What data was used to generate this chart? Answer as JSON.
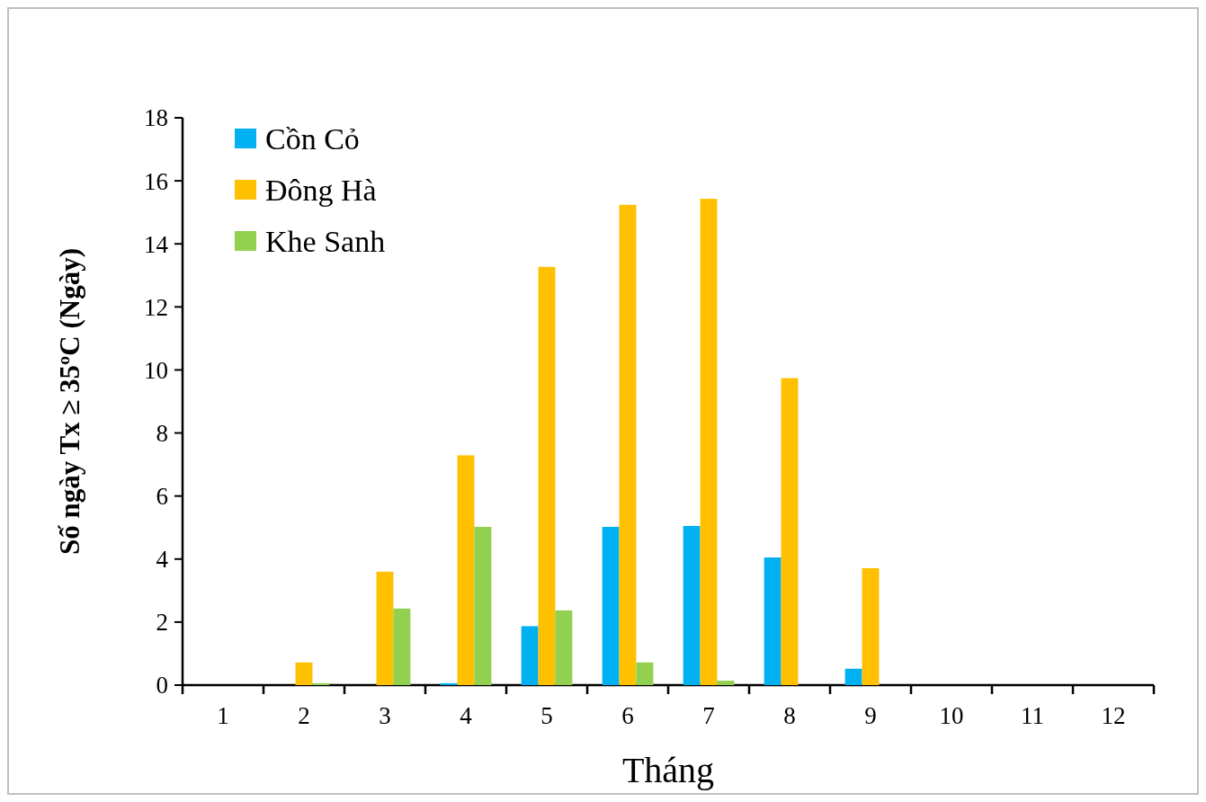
{
  "chart_data": {
    "type": "bar",
    "xlabel": "Tháng",
    "ylabel": "Số ngày Tx ≥ 35ºC (Ngày)",
    "categories": [
      "1",
      "2",
      "3",
      "4",
      "5",
      "6",
      "7",
      "8",
      "9",
      "10",
      "11",
      "12"
    ],
    "series": [
      {
        "name": "Cồn Cỏ",
        "color": "#00b0f0",
        "values": [
          0,
          0,
          0,
          0.06,
          1.87,
          5.02,
          5.05,
          4.05,
          0.52,
          0,
          0,
          0
        ]
      },
      {
        "name": "Đông Hà",
        "color": "#ffc000",
        "values": [
          0,
          0.72,
          3.6,
          7.29,
          13.27,
          15.24,
          15.43,
          9.74,
          3.71,
          0,
          0,
          0
        ]
      },
      {
        "name": "Khe Sanh",
        "color": "#92d050",
        "values": [
          0,
          0.06,
          2.43,
          5.02,
          2.37,
          0.72,
          0.14,
          0,
          0,
          0,
          0,
          0
        ]
      }
    ],
    "ylim": [
      0,
      18
    ],
    "yticks": [
      0,
      2,
      4,
      6,
      8,
      10,
      12,
      14,
      16,
      18
    ],
    "grid": false,
    "legend": "top left"
  }
}
